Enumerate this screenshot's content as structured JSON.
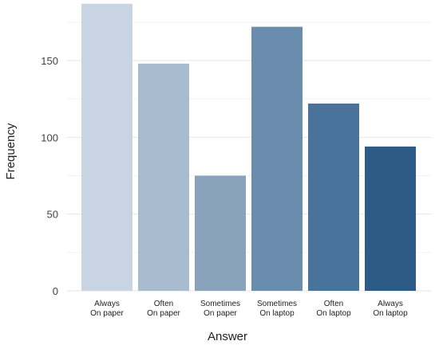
{
  "chart_data": {
    "type": "bar",
    "categories": [
      [
        "Always",
        "On paper"
      ],
      [
        "Often",
        "On paper"
      ],
      [
        "Sometimes",
        "On paper"
      ],
      [
        "Sometimes",
        "On laptop"
      ],
      [
        "Often",
        "On laptop"
      ],
      [
        "Always",
        "On laptop"
      ]
    ],
    "values": [
      187,
      148,
      75,
      172,
      122,
      94
    ],
    "colors": [
      "#c8d4e1",
      "#a9bbce",
      "#8aa3bc",
      "#6a8cad",
      "#4a739b",
      "#2d5a87"
    ],
    "xlabel": "Answer",
    "ylabel": "Frequency",
    "ylim": [
      0,
      190
    ],
    "yticks": [
      0,
      50,
      100,
      150
    ],
    "grid": true
  }
}
